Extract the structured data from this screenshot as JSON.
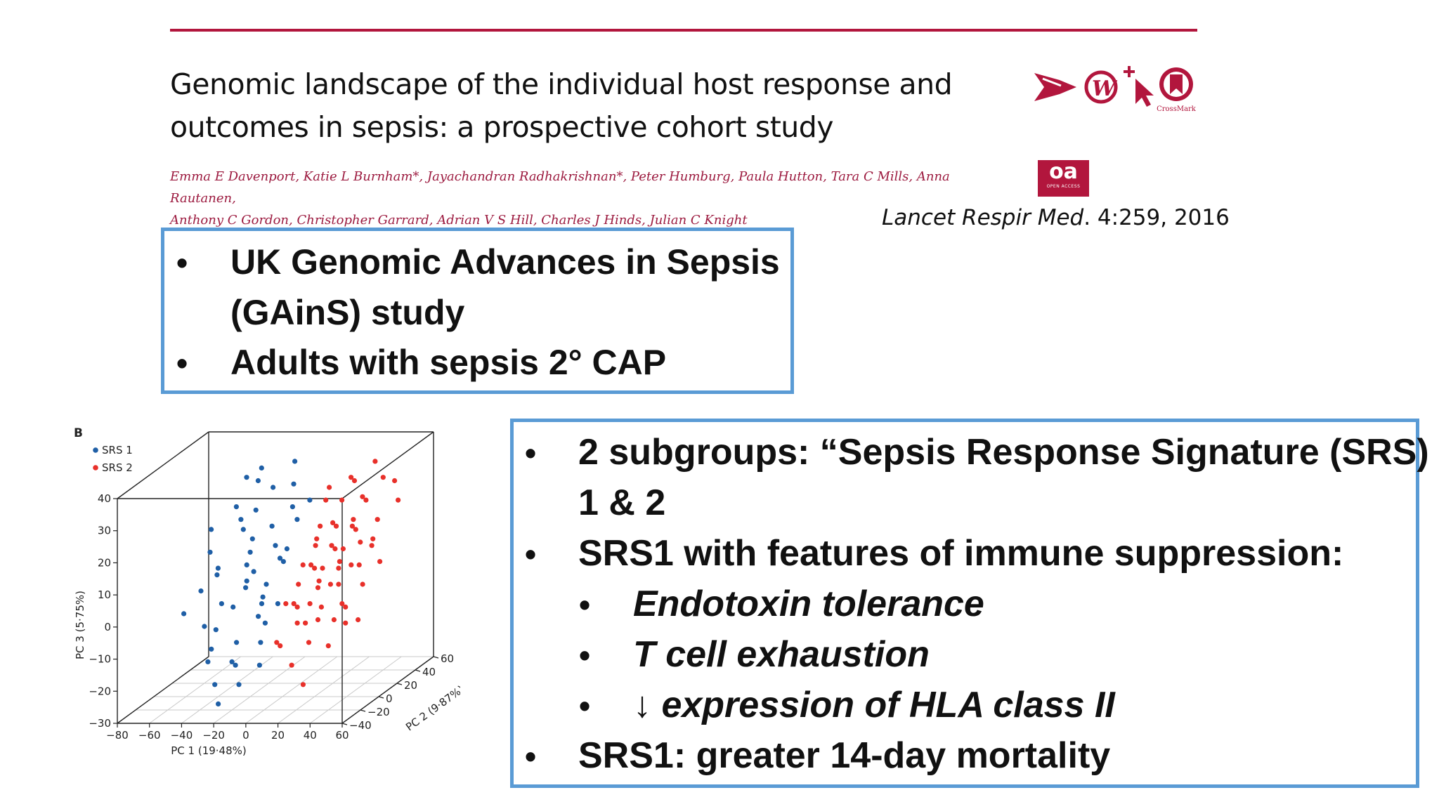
{
  "header": {
    "title_line1": "Genomic landscape of the individual host response and",
    "title_line2": "outcomes in sepsis: a prospective cohort study",
    "authors_line1": "Emma E Davenport, Katie L Burnham*, Jayachandran Radhakrishnan*, Peter Humburg, Paula Hutton, Tara C Mills, Anna Rautanen,",
    "authors_line2": "Anthony C Gordon, Christopher Garrard, Adrian V S Hill, Charles J Hinds, Julian C Knight",
    "citation_journal": "Lancet Respir Med",
    "citation_rest": ". 4:259, 2016",
    "crossmark_label": "CrossMark",
    "oa_label": "oa",
    "oa_sub": "OPEN ACCESS",
    "icons": [
      "arrow-logo-icon",
      "w-logo-icon",
      "cursor-icon",
      "crossmark-icon"
    ]
  },
  "box1": {
    "b1_line1": "UK Genomic Advances in Sepsis",
    "b1_line2": "(GAinS) study",
    "b2": "Adults with sepsis 2° CAP"
  },
  "box2": {
    "b1_line1": "2 subgroups:  “Sepsis Response Signature (SRS)",
    "b1_line2": "1 & 2",
    "b2": "SRS1 with features of immune suppression:",
    "s1": "Endotoxin tolerance",
    "s2": "T cell exhaustion",
    "s3_arrow": "↓",
    "s3": " expression of HLA class II",
    "b3": "SRS1:  greater 14-day mortality"
  },
  "bullet_char": "•",
  "colors": {
    "accent": "#b2163d",
    "box_border": "#5a9bd5",
    "srs1": "#1f5fa6",
    "srs2": "#e8302a"
  },
  "chart_data": {
    "type": "scatter",
    "panel_label": "B",
    "xlabel": "PC 1 (19·48%)",
    "ylabel": "PC 3 (5·75%)",
    "zlabel": "PC 2 (9·87%)",
    "x_ticks": [
      "−80",
      "−60",
      "−40",
      "−20",
      "0",
      "20",
      "40",
      "60"
    ],
    "y_ticks": [
      "−30",
      "−20",
      "−10",
      "0",
      "10",
      "20",
      "30",
      "40"
    ],
    "z_ticks": [
      "−40",
      "−20",
      "0",
      "20",
      "40",
      "60"
    ],
    "xlim": [
      -80,
      60
    ],
    "ylim": [
      -30,
      40
    ],
    "zlim": [
      -40,
      60
    ],
    "legend": "top-left",
    "series": [
      {
        "name": "SRS 1",
        "color": "#1f5fa6",
        "points": [
          [
            -50,
            20,
            10
          ],
          [
            -45,
            15,
            0
          ],
          [
            -40,
            25,
            20
          ],
          [
            -30,
            35,
            30
          ],
          [
            -35,
            10,
            -10
          ],
          [
            -25,
            5,
            5
          ],
          [
            -20,
            30,
            25
          ],
          [
            -15,
            20,
            15
          ],
          [
            -10,
            0,
            -5
          ],
          [
            -5,
            25,
            20
          ],
          [
            -30,
            -5,
            -20
          ],
          [
            -20,
            -10,
            -15
          ],
          [
            -15,
            -15,
            -25
          ],
          [
            -10,
            5,
            0
          ],
          [
            -5,
            10,
            10
          ],
          [
            0,
            15,
            5
          ],
          [
            -25,
            0,
            -10
          ],
          [
            -40,
            -5,
            -15
          ],
          [
            -35,
            30,
            35
          ],
          [
            -20,
            15,
            0
          ],
          [
            -10,
            -20,
            -30
          ],
          [
            -15,
            35,
            40
          ],
          [
            -45,
            30,
            40
          ],
          [
            -30,
            20,
            10
          ],
          [
            -5,
            -5,
            -10
          ],
          [
            0,
            0,
            -5
          ],
          [
            -20,
            -15,
            -20
          ],
          [
            -25,
            25,
            15
          ],
          [
            -35,
            0,
            -5
          ],
          [
            -10,
            30,
            30
          ],
          [
            -5,
            -10,
            -15
          ],
          [
            -40,
            10,
            0
          ],
          [
            -15,
            0,
            5
          ],
          [
            -25,
            -20,
            -30
          ],
          [
            -30,
            15,
            20
          ],
          [
            -20,
            5,
            -5
          ],
          [
            -10,
            15,
            10
          ],
          [
            0,
            -15,
            -25
          ],
          [
            -35,
            -15,
            -20
          ],
          [
            -45,
            5,
            -10
          ],
          [
            -5,
            20,
            25
          ],
          [
            -15,
            -5,
            0
          ],
          [
            -25,
            10,
            5
          ],
          [
            -20,
            -25,
            -35
          ],
          [
            -30,
            -10,
            -25
          ],
          [
            -10,
            10,
            15
          ],
          [
            0,
            25,
            30
          ],
          [
            -40,
            20,
            25
          ],
          [
            -15,
            10,
            -5
          ],
          [
            -50,
            0,
            -20
          ]
        ]
      },
      {
        "name": "SRS 2",
        "color": "#e8302a",
        "points": [
          [
            10,
            5,
            0
          ],
          [
            15,
            10,
            5
          ],
          [
            20,
            0,
            -5
          ],
          [
            25,
            15,
            10
          ],
          [
            30,
            5,
            0
          ],
          [
            35,
            20,
            15
          ],
          [
            40,
            10,
            5
          ],
          [
            45,
            0,
            -10
          ],
          [
            50,
            15,
            10
          ],
          [
            20,
            25,
            30
          ],
          [
            15,
            -5,
            -10
          ],
          [
            25,
            -10,
            -15
          ],
          [
            30,
            25,
            35
          ],
          [
            35,
            -5,
            -5
          ],
          [
            40,
            30,
            40
          ],
          [
            10,
            15,
            20
          ],
          [
            5,
            0,
            -5
          ],
          [
            20,
            10,
            0
          ],
          [
            30,
            15,
            5
          ],
          [
            45,
            20,
            25
          ],
          [
            15,
            20,
            15
          ],
          [
            25,
            5,
            -5
          ],
          [
            35,
            10,
            0
          ],
          [
            40,
            -10,
            -20
          ],
          [
            50,
            5,
            0
          ],
          [
            55,
            25,
            30
          ],
          [
            10,
            -10,
            -20
          ],
          [
            20,
            -15,
            -25
          ],
          [
            30,
            0,
            -10
          ],
          [
            35,
            35,
            40
          ],
          [
            25,
            30,
            35
          ],
          [
            15,
            30,
            25
          ],
          [
            45,
            10,
            5
          ],
          [
            40,
            20,
            10
          ],
          [
            20,
            20,
            20
          ],
          [
            10,
            10,
            5
          ],
          [
            5,
            -10,
            -15
          ],
          [
            30,
            -20,
            -30
          ],
          [
            25,
            20,
            15
          ],
          [
            50,
            30,
            35
          ],
          [
            15,
            0,
            -10
          ],
          [
            35,
            15,
            5
          ],
          [
            45,
            -5,
            -10
          ],
          [
            20,
            5,
            5
          ],
          [
            30,
            10,
            10
          ],
          [
            40,
            0,
            -5
          ],
          [
            10,
            25,
            30
          ],
          [
            25,
            -5,
            -5
          ],
          [
            55,
            10,
            10
          ],
          [
            35,
            5,
            0
          ],
          [
            15,
            15,
            10
          ],
          [
            20,
            -5,
            -10
          ],
          [
            30,
            20,
            25
          ],
          [
            40,
            15,
            15
          ],
          [
            45,
            15,
            20
          ],
          [
            50,
            -5,
            -5
          ],
          [
            25,
            10,
            0
          ],
          [
            35,
            25,
            30
          ],
          [
            10,
            0,
            -5
          ],
          [
            20,
            30,
            40
          ]
        ]
      }
    ]
  }
}
